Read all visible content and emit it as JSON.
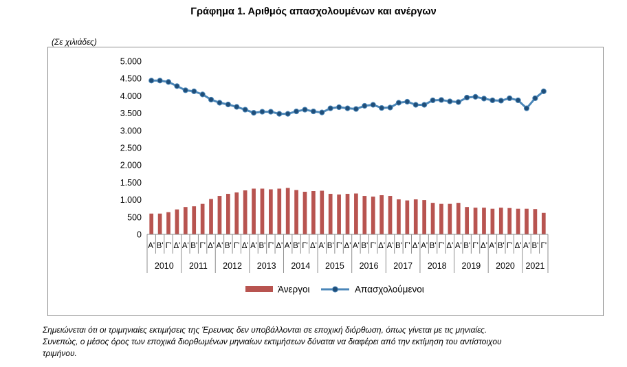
{
  "page": {
    "title": "Γράφημα 1. Αριθμός απασχολουμένων και ανέργων",
    "unit_label": "(Σε χιλιάδες)",
    "note": [
      "Σημειώνεται ότι οι τριμηνιαίες εκτιμήσεις της Έρευνας δεν υποβάλλονται σε εποχική διόρθωση, όπως γίνεται με τις μηνιαίες.",
      "Συνεπώς, ο μέσος όρος των εποχικά διορθωμένων μηνιαίων εκτιμήσεων δύναται να διαφέρει από την εκτίμηση του αντίστοιχου",
      "τριμήνου."
    ]
  },
  "chart_data": {
    "type": "bar",
    "title": "Γράφημα 1. Αριθμός απασχολουμένων και ανέργων",
    "ylabel": "(Σε χιλιάδες)",
    "ylim": [
      0,
      5000
    ],
    "yticks": [
      0,
      500,
      1000,
      1500,
      2000,
      2500,
      3000,
      3500,
      4000,
      4500,
      5000
    ],
    "ytick_labels": [
      "0",
      "500",
      "1.000",
      "1.500",
      "2.000",
      "2.500",
      "3.000",
      "3.500",
      "4.000",
      "4.500",
      "5.000"
    ],
    "grid": false,
    "legend_position": "bottom",
    "colors": {
      "bars": "#b85450",
      "line": "#4a86b8",
      "markers": "#1f4e79"
    },
    "quarters": [
      "Α'",
      "Β'",
      "Γ'",
      "Δ'",
      "Α'",
      "Β'",
      "Γ'",
      "Δ'",
      "Α'",
      "Β'",
      "Γ'",
      "Δ'",
      "Α'",
      "Β'",
      "Γ'",
      "Δ'",
      "Α'",
      "Β'",
      "Γ'",
      "Δ'",
      "Α'",
      "Β'",
      "Γ'",
      "Δ'",
      "Α'",
      "Β'",
      "Γ'",
      "Δ'",
      "Α'",
      "Β'",
      "Γ'",
      "Δ'",
      "Α'",
      "Β'",
      "Γ'",
      "Δ'",
      "Α'",
      "Β'",
      "Γ'",
      "Δ'",
      "Α'",
      "Β'",
      "Γ'",
      "Δ'",
      "Α'",
      "Β'",
      "Γ'"
    ],
    "years": [
      "2010",
      "2011",
      "2012",
      "2013",
      "2014",
      "2015",
      "2016",
      "2017",
      "2018",
      "2019",
      "2020",
      "2021"
    ],
    "series": [
      {
        "name": "Άνεργοι",
        "type": "bar",
        "values": [
          600,
          600,
          640,
          720,
          790,
          810,
          880,
          1020,
          1110,
          1170,
          1210,
          1270,
          1320,
          1320,
          1300,
          1320,
          1340,
          1280,
          1230,
          1250,
          1260,
          1170,
          1150,
          1170,
          1180,
          1110,
          1090,
          1130,
          1110,
          1010,
          980,
          1010,
          990,
          910,
          880,
          880,
          910,
          790,
          770,
          770,
          740,
          770,
          760,
          740,
          740,
          730,
          620
        ]
      },
      {
        "name": "Απασχολούμενοι",
        "type": "line",
        "values": [
          4440,
          4440,
          4400,
          4280,
          4160,
          4130,
          4040,
          3890,
          3800,
          3750,
          3680,
          3600,
          3510,
          3540,
          3540,
          3480,
          3480,
          3550,
          3600,
          3550,
          3520,
          3640,
          3670,
          3640,
          3620,
          3710,
          3740,
          3650,
          3660,
          3800,
          3830,
          3740,
          3740,
          3870,
          3880,
          3840,
          3820,
          3950,
          3970,
          3920,
          3870,
          3860,
          3930,
          3870,
          3640,
          3930,
          4130
        ]
      }
    ]
  }
}
